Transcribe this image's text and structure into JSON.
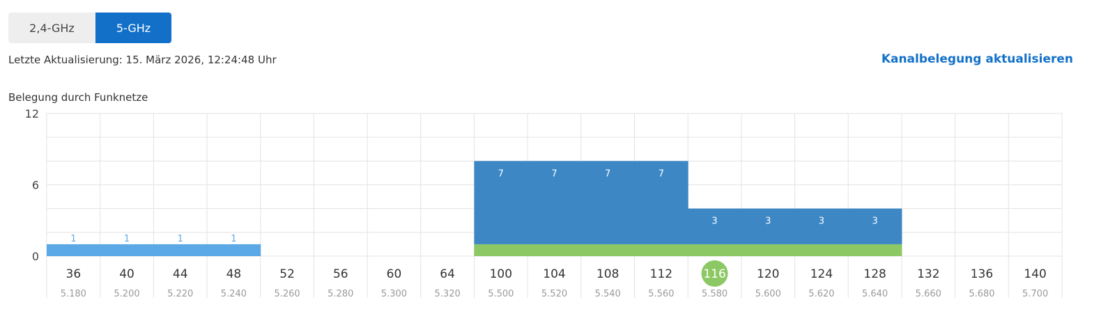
{
  "tabs": {
    "band_24": "2,4-GHz",
    "band_5": "5-GHz",
    "active": "5-GHz"
  },
  "status": {
    "last_update": "Letzte Aktualisierung: 15. März 2026, 12:24:48 Uhr"
  },
  "actions": {
    "refresh_label": "Kanalbelegung aktualisieren"
  },
  "colors": {
    "accent": "#1270c8",
    "own_network": "#8cc863",
    "networks_dark": "#3d87c4",
    "networks_light": "#5aa8e6",
    "grid": "#e3e3e3"
  },
  "chart_data": {
    "type": "bar",
    "title": "Belegung durch Funknetze",
    "xlabel": "",
    "ylabel": "",
    "ylim": [
      0,
      12
    ],
    "yticks": [
      0,
      6,
      12
    ],
    "grid": true,
    "categories": [
      "36",
      "40",
      "44",
      "48",
      "52",
      "56",
      "60",
      "64",
      "100",
      "104",
      "108",
      "112",
      "116",
      "120",
      "124",
      "128",
      "132",
      "136",
      "140"
    ],
    "frequencies": [
      "5.180",
      "5.200",
      "5.220",
      "5.240",
      "5.260",
      "5.280",
      "5.300",
      "5.320",
      "5.500",
      "5.520",
      "5.540",
      "5.560",
      "5.580",
      "5.600",
      "5.620",
      "5.640",
      "5.660",
      "5.680",
      "5.700"
    ],
    "active_channel": "116",
    "series": [
      {
        "values": [
          0,
          0,
          0,
          0,
          0,
          0,
          0,
          0,
          1,
          1,
          1,
          1,
          1,
          1,
          1,
          1,
          0,
          0,
          0
        ],
        "color": "#8cc863"
      },
      {
        "values": [
          1,
          1,
          1,
          1,
          0,
          0,
          0,
          0,
          7,
          7,
          7,
          7,
          3,
          3,
          3,
          3,
          0,
          0,
          0
        ],
        "color": "#3d87c4",
        "light_color": "#5aa8e6",
        "light_channels": [
          "36",
          "40",
          "44",
          "48"
        ]
      }
    ]
  }
}
